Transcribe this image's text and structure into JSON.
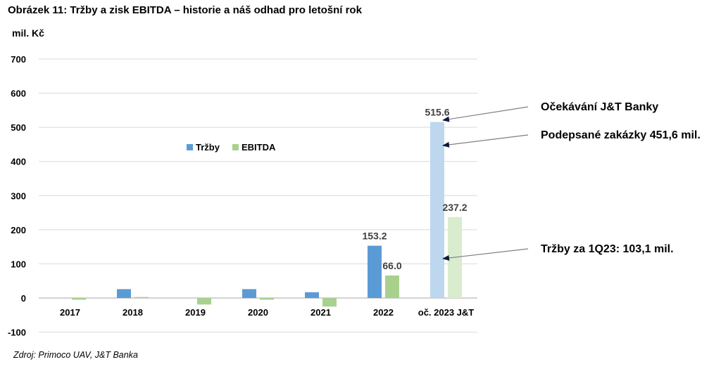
{
  "title": "Obrázek 11: Tržby a zisk EBITDA – historie a náš odhad pro letošní rok",
  "unit_label": "mil. Kč",
  "source": "Zdroj: Primoco UAV, J&T Banka",
  "colors": {
    "trzby": "#5b9bd5",
    "ebitda": "#a9d18e",
    "trzby_forecast": "#bdd7ee",
    "ebitda_forecast": "#d9ecce",
    "grid": "#d9d9d9",
    "axis": "#a6a6a6"
  },
  "chart_data": {
    "type": "bar",
    "categories": [
      "2017",
      "2018",
      "2019",
      "2020",
      "2021",
      "2022",
      "oč. 2023 J&T"
    ],
    "series": [
      {
        "name": "Tržby",
        "values": [
          0,
          26,
          0,
          26,
          17,
          153.2,
          515.6
        ]
      },
      {
        "name": "EBITDA",
        "values": [
          -5,
          3,
          -19,
          -5,
          -25,
          66.0,
          237.2
        ]
      }
    ],
    "forecast_category_index": 6,
    "data_labels": [
      {
        "series": 0,
        "index": 5,
        "text": "153.2"
      },
      {
        "series": 1,
        "index": 5,
        "text": "66.0"
      },
      {
        "series": 0,
        "index": 6,
        "text": "515.6"
      },
      {
        "series": 1,
        "index": 6,
        "text": "237.2"
      }
    ],
    "ylim": [
      -100,
      700
    ],
    "yticks": [
      "-100",
      "0",
      "100",
      "200",
      "300",
      "400",
      "500",
      "600",
      "700"
    ],
    "ytick_values": [
      -100,
      0,
      100,
      200,
      300,
      400,
      500,
      600,
      700
    ],
    "grid": true,
    "legend_position": "center-left",
    "annotations": [
      {
        "text": "Očekávání J&T Banky",
        "target_value": 515.6
      },
      {
        "text": "Podepsané zakázky 451,6 mil.",
        "target_value": 451.6
      },
      {
        "text": "Tržby za 1Q23: 103,1 mil.",
        "target_value": 103.1
      }
    ]
  }
}
